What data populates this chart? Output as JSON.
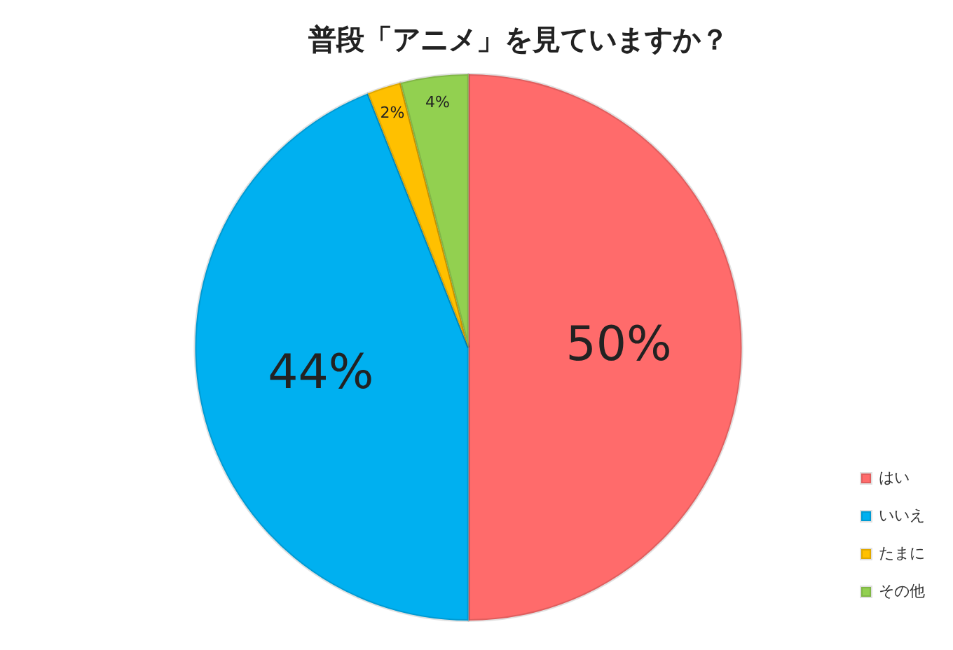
{
  "chart_data": {
    "type": "pie",
    "title": "普段「アニメ」を見ていますか？",
    "categories": [
      "はい",
      "いいえ",
      "たまに",
      "その他"
    ],
    "values": [
      50,
      44,
      2,
      4
    ],
    "value_labels": [
      "50%",
      "44%",
      "2%",
      "4%"
    ],
    "colors": [
      "#ff6b6b",
      "#00b0f0",
      "#ffc000",
      "#92d050"
    ],
    "legend": "bottom right"
  }
}
